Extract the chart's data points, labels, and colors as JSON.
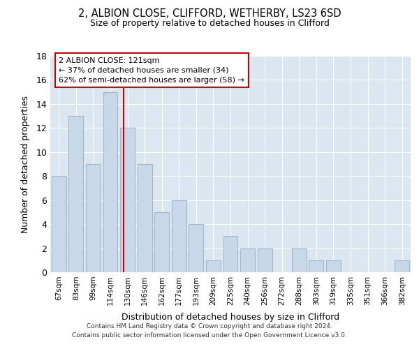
{
  "title1": "2, ALBION CLOSE, CLIFFORD, WETHERBY, LS23 6SD",
  "title2": "Size of property relative to detached houses in Clifford",
  "xlabel": "Distribution of detached houses by size in Clifford",
  "ylabel": "Number of detached properties",
  "categories": [
    "67sqm",
    "83sqm",
    "99sqm",
    "114sqm",
    "130sqm",
    "146sqm",
    "162sqm",
    "177sqm",
    "193sqm",
    "209sqm",
    "225sqm",
    "240sqm",
    "256sqm",
    "272sqm",
    "288sqm",
    "303sqm",
    "319sqm",
    "335sqm",
    "351sqm",
    "366sqm",
    "382sqm"
  ],
  "values": [
    8,
    13,
    9,
    15,
    12,
    9,
    5,
    6,
    4,
    1,
    3,
    2,
    2,
    0,
    2,
    1,
    1,
    0,
    0,
    0,
    1
  ],
  "bar_color": "#c8d8e8",
  "bar_edgecolor": "#a0b8cc",
  "vline_x_index": 3.78,
  "vline_color": "#cc0000",
  "annotation_text": "2 ALBION CLOSE: 121sqm\n← 37% of detached houses are smaller (34)\n62% of semi-detached houses are larger (58) →",
  "annotation_box_edgecolor": "#cc0000",
  "ylim": [
    0,
    18
  ],
  "yticks": [
    0,
    2,
    4,
    6,
    8,
    10,
    12,
    14,
    16,
    18
  ],
  "background_color": "#dce6f0",
  "footer1": "Contains HM Land Registry data © Crown copyright and database right 2024.",
  "footer2": "Contains public sector information licensed under the Open Government Licence v3.0."
}
